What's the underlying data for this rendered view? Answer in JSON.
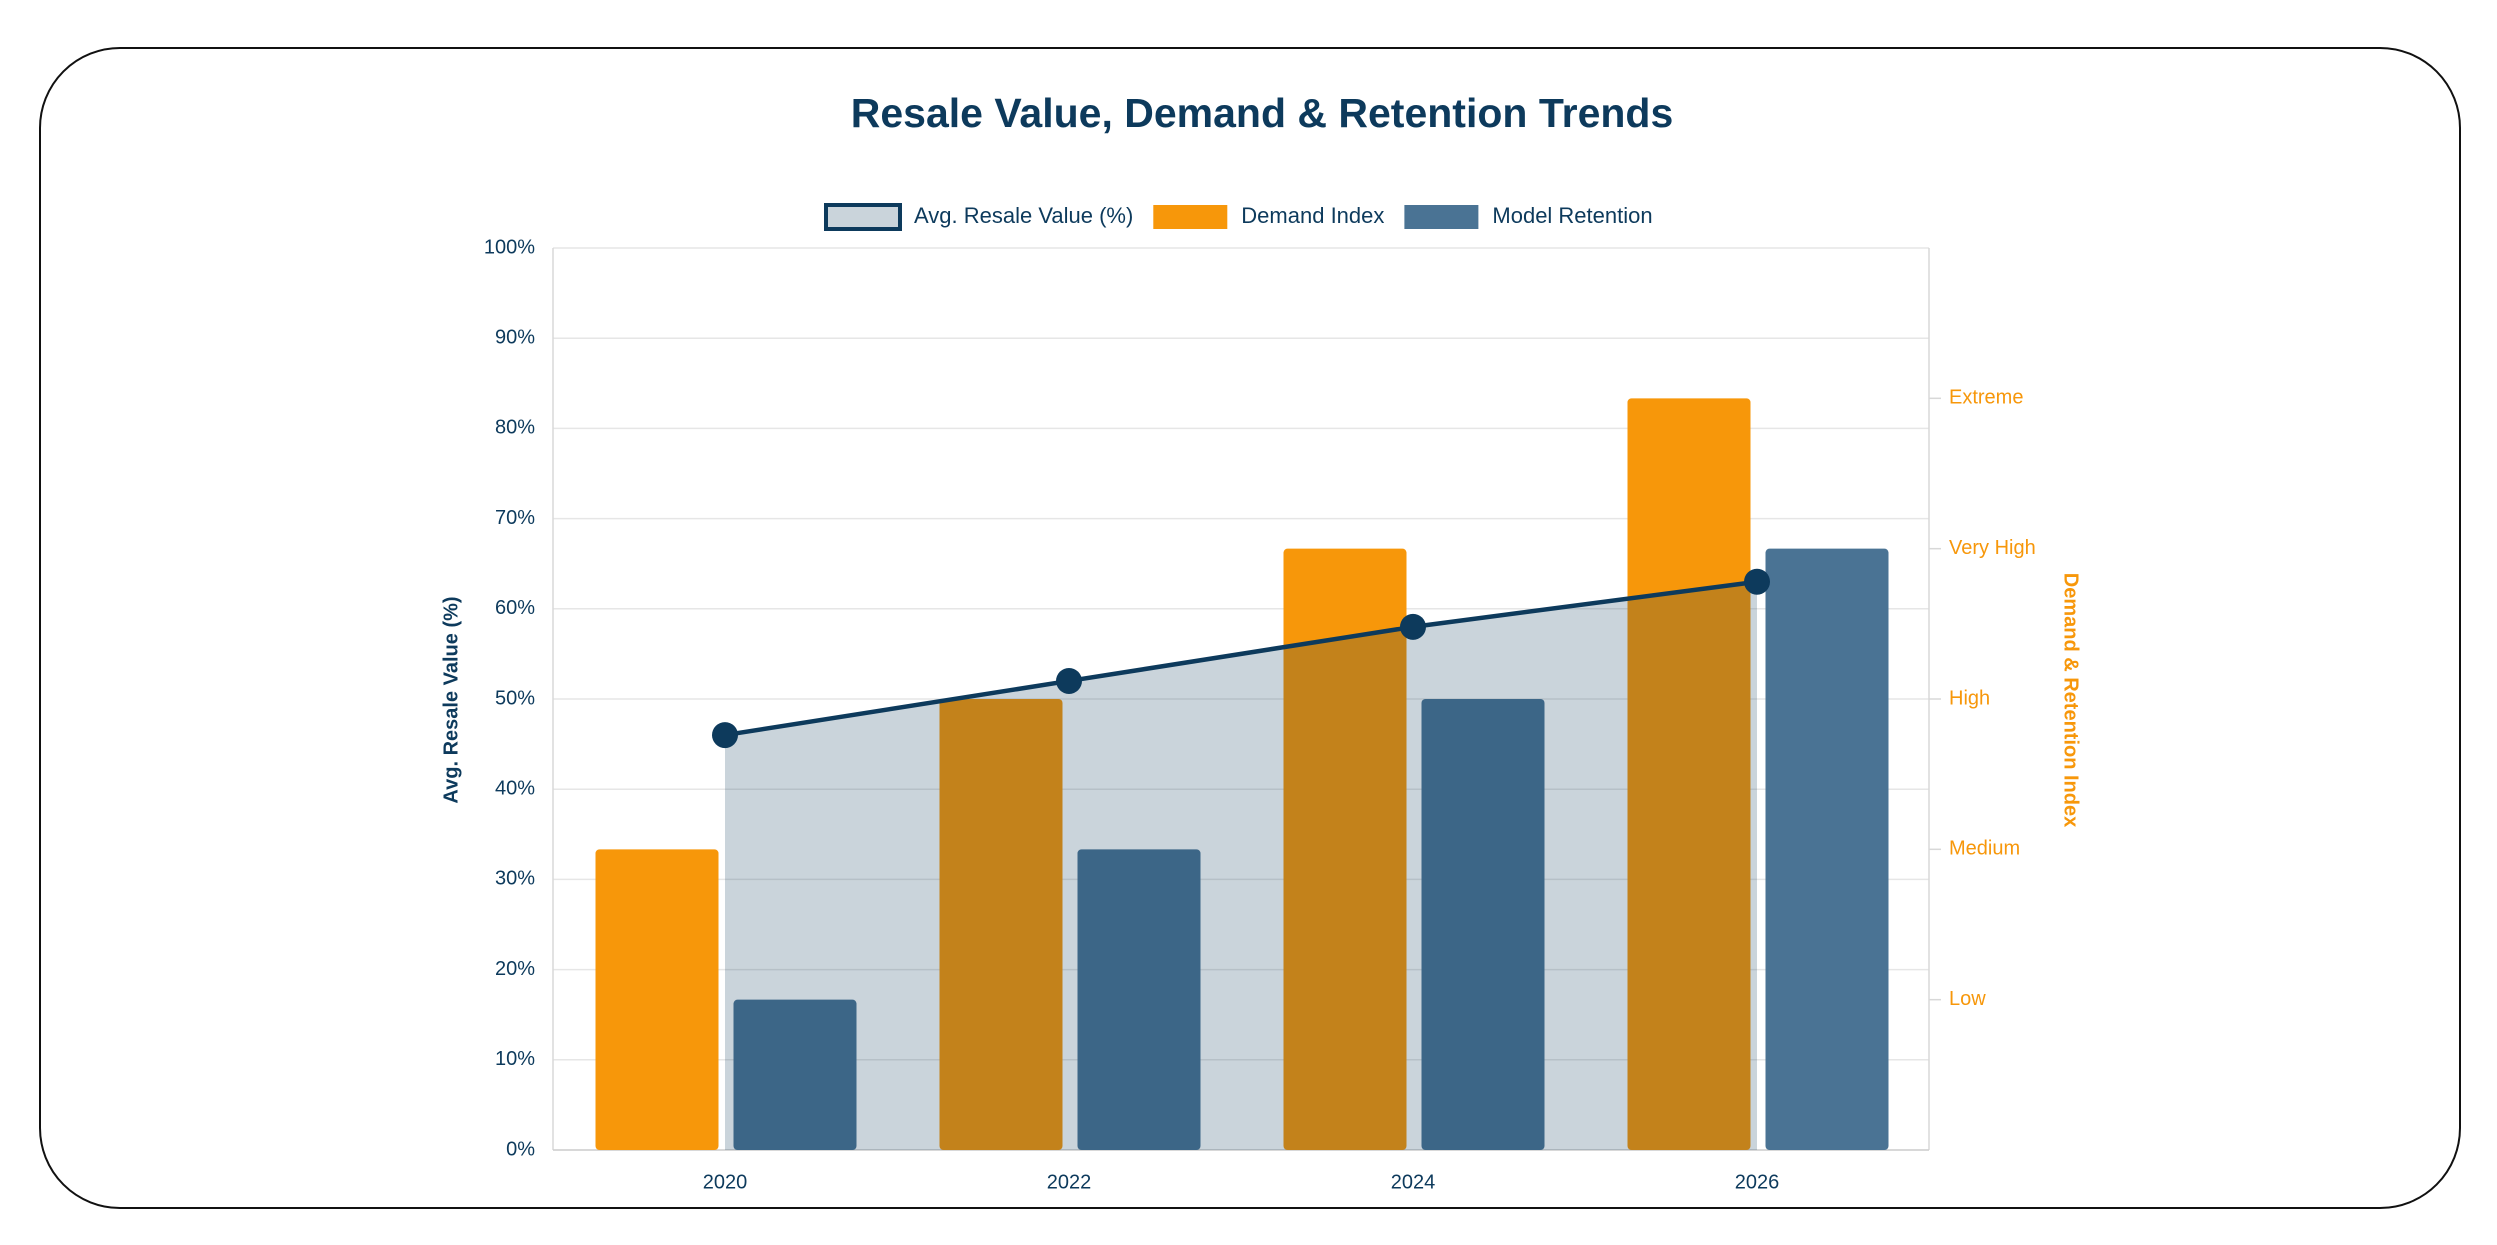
{
  "chart_data": {
    "type": "bar",
    "title": "Resale Value, Demand & Retention Trends",
    "categories": [
      "2020",
      "2022",
      "2024",
      "2026"
    ],
    "series": [
      {
        "name": "Avg. Resale Value (%)",
        "type": "line",
        "fill": true,
        "color": "#0d3a5c",
        "values": [
          46,
          52,
          58,
          63
        ]
      },
      {
        "name": "Demand Index",
        "type": "bar",
        "axis": "y2",
        "color": "#f7970a",
        "values": [
          2,
          3,
          4,
          5
        ]
      },
      {
        "name": "Model Retention",
        "type": "bar",
        "axis": "y2",
        "color": "#4a7394",
        "values": [
          1,
          2,
          3,
          4
        ]
      }
    ],
    "y_label": "Avg. Resale Value (%)",
    "y2_label": "Demand & Retention Index",
    "ylim": [
      0,
      100
    ],
    "yticks": [
      {
        "value": 0,
        "label": "0%"
      },
      {
        "value": 10,
        "label": "10%"
      },
      {
        "value": 20,
        "label": "20%"
      },
      {
        "value": 30,
        "label": "30%"
      },
      {
        "value": 40,
        "label": "40%"
      },
      {
        "value": 50,
        "label": "50%"
      },
      {
        "value": 60,
        "label": "60%"
      },
      {
        "value": 70,
        "label": "70%"
      },
      {
        "value": 80,
        "label": "80%"
      },
      {
        "value": 90,
        "label": "90%"
      },
      {
        "value": 100,
        "label": "100%"
      }
    ],
    "y2lim": [
      0,
      6
    ],
    "y2ticks": [
      {
        "value": 1,
        "label": "Low"
      },
      {
        "value": 2,
        "label": "Medium"
      },
      {
        "value": 3,
        "label": "High"
      },
      {
        "value": 4,
        "label": "Very High"
      },
      {
        "value": 5,
        "label": "Extreme"
      }
    ],
    "grid": true,
    "legend": "top"
  }
}
